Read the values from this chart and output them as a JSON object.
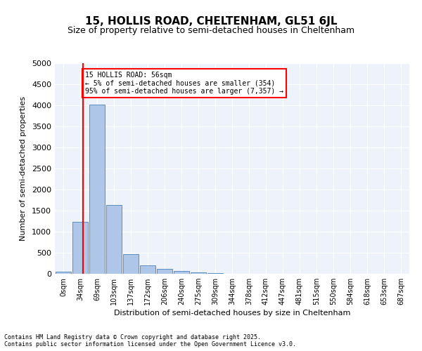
{
  "title1": "15, HOLLIS ROAD, CHELTENHAM, GL51 6JL",
  "title2": "Size of property relative to semi-detached houses in Cheltenham",
  "xlabel": "Distribution of semi-detached houses by size in Cheltenham",
  "ylabel": "Number of semi-detached properties",
  "bin_labels": [
    "0sqm",
    "34sqm",
    "69sqm",
    "103sqm",
    "137sqm",
    "172sqm",
    "206sqm",
    "240sqm",
    "275sqm",
    "309sqm",
    "344sqm",
    "378sqm",
    "412sqm",
    "447sqm",
    "481sqm",
    "515sqm",
    "550sqm",
    "584sqm",
    "618sqm",
    "653sqm",
    "687sqm"
  ],
  "bar_values": [
    50,
    1230,
    4020,
    1630,
    475,
    200,
    110,
    70,
    35,
    10,
    5,
    2,
    0,
    0,
    0,
    0,
    0,
    0,
    0,
    0,
    0
  ],
  "bar_color": "#aec6e8",
  "bar_edge_color": "#5a8fc2",
  "vline_color": "red",
  "annotation_title": "15 HOLLIS ROAD: 56sqm",
  "annotation_line1": "← 5% of semi-detached houses are smaller (354)",
  "annotation_line2": "95% of semi-detached houses are larger (7,357) →",
  "ylim": [
    0,
    5000
  ],
  "yticks": [
    0,
    500,
    1000,
    1500,
    2000,
    2500,
    3000,
    3500,
    4000,
    4500,
    5000
  ],
  "background_color": "#eef2fa",
  "footer1": "Contains HM Land Registry data © Crown copyright and database right 2025.",
  "footer2": "Contains public sector information licensed under the Open Government Licence v3.0.",
  "bin_width": 34,
  "vline_sqm": 56
}
